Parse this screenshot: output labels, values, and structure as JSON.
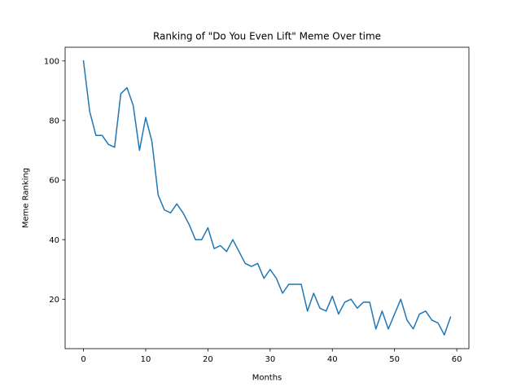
{
  "chart_data": {
    "type": "line",
    "title": "Ranking of \"Do You Even Lift\" Meme Over time",
    "xlabel": "Months",
    "ylabel": "Meme Ranking",
    "xlim": [
      -2.95,
      61.95
    ],
    "ylim": [
      3.4,
      104.6
    ],
    "xticks": [
      0,
      10,
      20,
      30,
      40,
      50,
      60
    ],
    "yticks": [
      20,
      40,
      60,
      80,
      100
    ],
    "grid": false,
    "line_color": "#1f77b4",
    "series": [
      {
        "x": [
          0,
          1,
          2,
          3,
          4,
          5,
          6,
          7,
          8,
          9,
          10,
          11,
          12,
          13,
          14,
          15,
          16,
          17,
          18,
          19,
          20,
          21,
          22,
          23,
          24,
          25,
          26,
          27,
          28,
          29,
          30,
          31,
          32,
          33,
          34,
          35,
          36,
          37,
          38,
          39,
          40,
          41,
          42,
          43,
          44,
          45,
          46,
          47,
          48,
          49,
          50,
          51,
          52,
          53,
          54,
          55,
          56,
          57,
          58,
          59
        ],
        "values": [
          100,
          83,
          75,
          75,
          72,
          71,
          89,
          91,
          85,
          70,
          81,
          73,
          55,
          50,
          49,
          52,
          49,
          45,
          40,
          40,
          44,
          37,
          38,
          36,
          40,
          36,
          32,
          31,
          32,
          27,
          30,
          27,
          22,
          25,
          25,
          25,
          16,
          22,
          17,
          16,
          21,
          15,
          19,
          20,
          17,
          19,
          19,
          10,
          16,
          10,
          15,
          20,
          13,
          10,
          15,
          16,
          13,
          12,
          8,
          14
        ]
      }
    ]
  }
}
